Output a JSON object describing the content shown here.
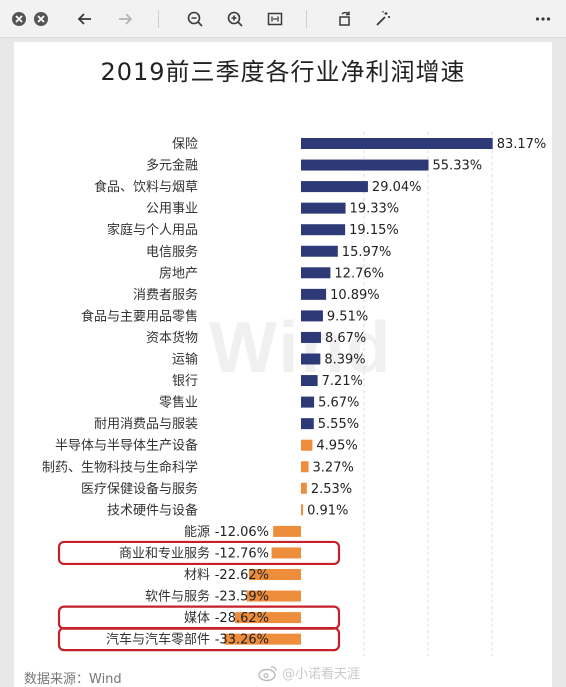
{
  "toolbar": {
    "icons": [
      "close-icon",
      "minimize-icon",
      "back-arrow-icon",
      "forward-arrow-icon",
      "zoom-out-icon",
      "zoom-in-icon",
      "fit-icon",
      "rotate-icon",
      "magic-wand-icon",
      "more-icon"
    ]
  },
  "watermark": "Wind",
  "source_label": "数据来源：Wind",
  "weibo_handle": "@小诺看天涯",
  "colors": {
    "positive_bar": "#2e3a78",
    "small_positive_bar": "#ee8e3c",
    "negative_bar": "#ee8e3c",
    "highlight_box": "#c8202a",
    "grid": "#d8d8e6"
  },
  "chart_data": {
    "type": "bar",
    "orientation": "horizontal",
    "title": "2019前三季度各行业净利润增速",
    "unit": "%",
    "grid": true,
    "highlighted": [
      "商业和专业服务",
      "媒体",
      "汽车与汽车零部件"
    ],
    "categories": [
      "保险",
      "多元金融",
      "食品、饮料与烟草",
      "公用事业",
      "家庭与个人用品",
      "电信服务",
      "房地产",
      "消费者服务",
      "食品与主要用品零售",
      "资本货物",
      "运输",
      "银行",
      "零售业",
      "耐用消费品与服装",
      "半导体与半导体生产设备",
      "制药、生物科技与生命科学",
      "医疗保健设备与服务",
      "技术硬件与设备",
      "能源",
      "商业和专业服务",
      "材料",
      "软件与服务",
      "媒体",
      "汽车与汽车零部件"
    ],
    "values": [
      83.17,
      55.33,
      29.04,
      19.33,
      19.15,
      15.97,
      12.76,
      10.89,
      9.51,
      8.67,
      8.39,
      7.21,
      5.67,
      5.55,
      4.95,
      3.27,
      2.53,
      0.91,
      -12.06,
      -12.76,
      -22.62,
      -23.59,
      -28.62,
      -33.26
    ],
    "labels": [
      "83.17%",
      "55.33%",
      "29.04%",
      "19.33%",
      "19.15%",
      "15.97%",
      "12.76%",
      "10.89%",
      "9.51%",
      "8.67%",
      "8.39%",
      "7.21%",
      "5.67%",
      "5.55%",
      "4.95%",
      "3.27%",
      "2.53%",
      "0.91%",
      "-12.06%",
      "-12.76%",
      "-22.62%",
      "-23.59%",
      "-28.62%",
      "-33.26%"
    ]
  }
}
